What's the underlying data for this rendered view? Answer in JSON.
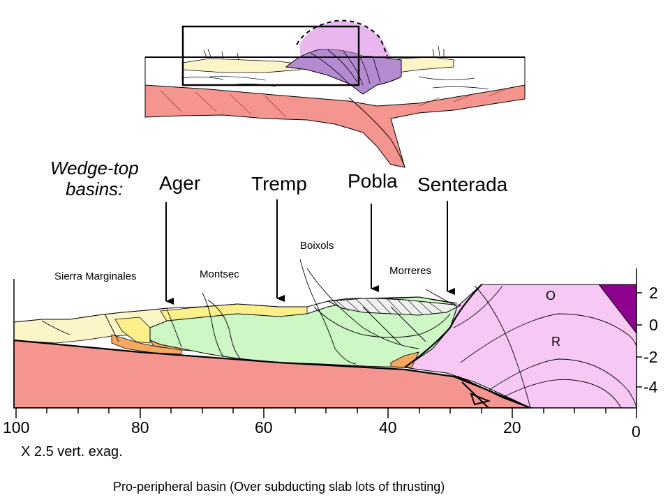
{
  "heading": {
    "line1": "Wedge-top",
    "line2": "basins:"
  },
  "basins": [
    "Ager",
    "Tremp",
    "Pobla",
    "Senterada"
  ],
  "structures": [
    "Sierra Marginales",
    "Montsec",
    "Boixols",
    "Morreres"
  ],
  "zones": [
    "O",
    "R"
  ],
  "x_axis_ticks": [
    "100",
    "80",
    "60",
    "40",
    "20",
    "0"
  ],
  "depth_ticks": [
    "2",
    "0",
    "-2",
    "-4"
  ],
  "exaggeration_note": "X 2.5 vert. exag.",
  "caption": "Pro-peripheral basin (Over subducting slab lots of thrusting)",
  "colors": {
    "basement": "#f4958f",
    "basement_edge": "#c05a55",
    "green_unit": "#cdf7c5",
    "yellow_unit": "#fdf08a",
    "cream_unit": "#fcf5c8",
    "orange_unit": "#f4a860",
    "pink_unit": "#f8c8f4",
    "purple_unit": "#8e008e",
    "overview_purple": "#b48ad0",
    "overview_pink": "#e9b6ef"
  }
}
